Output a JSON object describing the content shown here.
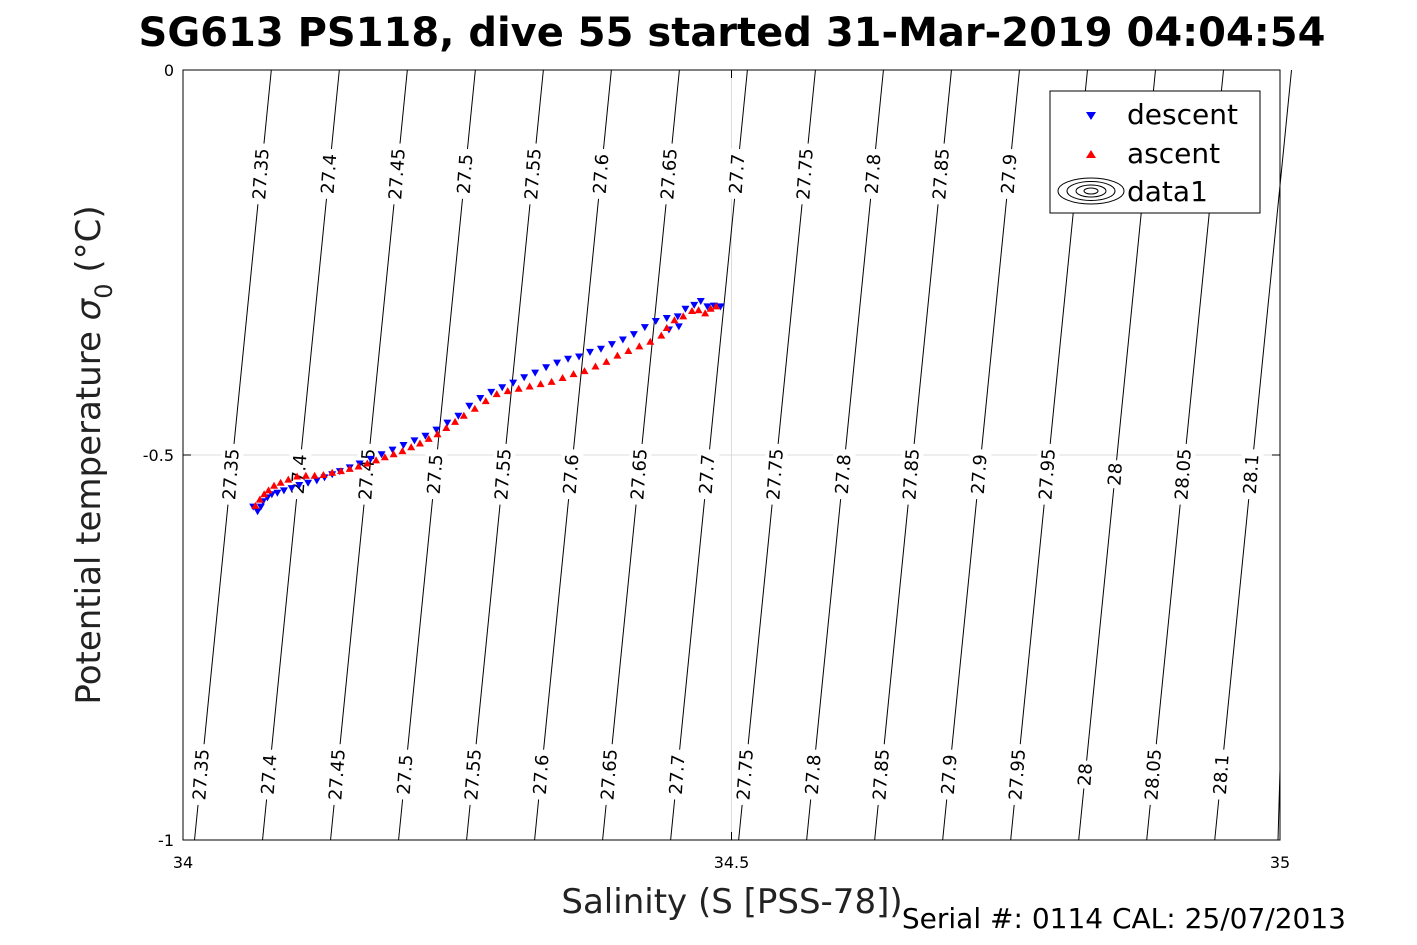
{
  "chart_data": {
    "type": "scatter",
    "title": "SG613 PS118, dive 55 started 31-Mar-2019 04:04:54",
    "xlabel": "Salinity (S [PSS-78])",
    "ylabel_main": "Potential temperature ",
    "ylabel_sigma": "σ",
    "ylabel_sub": "0",
    "ylabel_unit": " (°C)",
    "xlim": [
      34,
      35
    ],
    "ylim": [
      -1,
      0
    ],
    "x_ticks": [
      34,
      34.5,
      35
    ],
    "x_tick_labels": [
      "34",
      "34.5",
      "35"
    ],
    "y_ticks": [
      0,
      -0.5,
      -1
    ],
    "y_tick_labels": [
      "0",
      "-0.5",
      "-1"
    ],
    "grid": true,
    "legend_position": "top-right",
    "legend": [
      {
        "label": "descent",
        "marker": "triangle-down",
        "color": "#0000ff"
      },
      {
        "label": "ascent",
        "marker": "triangle-up",
        "color": "#ff0000"
      },
      {
        "label": "data1",
        "marker": "contour",
        "color": "#000000"
      }
    ],
    "contour_levels": [
      27.35,
      27.4,
      27.45,
      27.5,
      27.55,
      27.6,
      27.65,
      27.7,
      27.75,
      27.8,
      27.85,
      27.9,
      27.95,
      28,
      28.05,
      28.1
    ],
    "contour_labels": {
      "top": [
        "27.35",
        "27.4",
        "27.45",
        "27.5",
        "27.55",
        "27.6",
        "27.65",
        "27.7",
        "27.75",
        "27.8",
        "27.85",
        "27.9",
        "28.1"
      ],
      "middle": [
        "27.35",
        "27.4",
        "27.45",
        "27.5",
        "27.55",
        "27.6",
        "27.65",
        "27.7",
        "27.75",
        "27.8",
        "27.85",
        "27.9",
        "27.95",
        "28",
        "28.05",
        "28.1"
      ],
      "bottom": [
        "27.35",
        "27.4",
        "27.45",
        "27.5",
        "27.55",
        "27.6",
        "27.65",
        "27.7",
        "27.75",
        "27.8",
        "27.85",
        "27.9",
        "27.95",
        "28",
        "28.05",
        "28.1"
      ]
    },
    "series": [
      {
        "name": "descent",
        "color": "#0000ff",
        "marker": "triangle-down",
        "x": [
          34.064,
          34.068,
          34.071,
          34.073,
          34.077,
          34.081,
          34.086,
          34.092,
          34.099,
          34.106,
          34.114,
          34.122,
          34.129,
          34.136,
          34.143,
          34.152,
          34.161,
          34.171,
          34.181,
          34.191,
          34.201,
          34.211,
          34.221,
          34.231,
          34.241,
          34.251,
          34.261,
          34.271,
          34.281,
          34.291,
          34.301,
          34.311,
          34.321,
          34.331,
          34.341,
          34.351,
          34.361,
          34.371,
          34.381,
          34.391,
          34.401,
          34.411,
          34.421,
          34.431,
          34.441,
          34.451,
          34.458,
          34.466,
          34.472,
          34.478,
          34.484,
          34.49,
          34.443,
          34.452
        ],
        "y": [
          -0.567,
          -0.573,
          -0.567,
          -0.56,
          -0.555,
          -0.551,
          -0.549,
          -0.546,
          -0.543,
          -0.539,
          -0.536,
          -0.533,
          -0.529,
          -0.525,
          -0.521,
          -0.516,
          -0.511,
          -0.505,
          -0.499,
          -0.493,
          -0.487,
          -0.481,
          -0.475,
          -0.467,
          -0.458,
          -0.449,
          -0.436,
          -0.426,
          -0.418,
          -0.412,
          -0.406,
          -0.399,
          -0.393,
          -0.386,
          -0.38,
          -0.375,
          -0.372,
          -0.366,
          -0.362,
          -0.356,
          -0.35,
          -0.343,
          -0.334,
          -0.326,
          -0.322,
          -0.32,
          -0.31,
          -0.305,
          -0.3,
          -0.307,
          -0.306,
          -0.307,
          -0.337,
          -0.333
        ]
      },
      {
        "name": "ascent",
        "color": "#ff0000",
        "marker": "triangle-up",
        "x": [
          34.066,
          34.07,
          34.074,
          34.078,
          34.083,
          34.089,
          34.096,
          34.104,
          34.112,
          34.12,
          34.128,
          34.136,
          34.144,
          34.152,
          34.16,
          34.168,
          34.176,
          34.184,
          34.192,
          34.2,
          34.208,
          34.216,
          34.224,
          34.232,
          34.24,
          34.248,
          34.256,
          34.266,
          34.276,
          34.286,
          34.296,
          34.306,
          34.316,
          34.326,
          34.336,
          34.346,
          34.356,
          34.366,
          34.376,
          34.386,
          34.396,
          34.406,
          34.416,
          34.426,
          34.436,
          34.441,
          34.448,
          34.456,
          34.464,
          34.47,
          34.476,
          34.481,
          34.486
        ],
        "y": [
          -0.566,
          -0.558,
          -0.551,
          -0.546,
          -0.54,
          -0.536,
          -0.532,
          -0.528,
          -0.527,
          -0.527,
          -0.526,
          -0.523,
          -0.521,
          -0.518,
          -0.515,
          -0.511,
          -0.507,
          -0.503,
          -0.499,
          -0.495,
          -0.49,
          -0.485,
          -0.479,
          -0.473,
          -0.465,
          -0.457,
          -0.449,
          -0.44,
          -0.43,
          -0.421,
          -0.417,
          -0.414,
          -0.411,
          -0.408,
          -0.405,
          -0.4,
          -0.395,
          -0.391,
          -0.385,
          -0.379,
          -0.371,
          -0.365,
          -0.359,
          -0.353,
          -0.345,
          -0.335,
          -0.325,
          -0.32,
          -0.313,
          -0.312,
          -0.316,
          -0.31,
          -0.307
        ]
      }
    ]
  },
  "footer": "Serial #: 0114  CAL: 25/07/2013"
}
